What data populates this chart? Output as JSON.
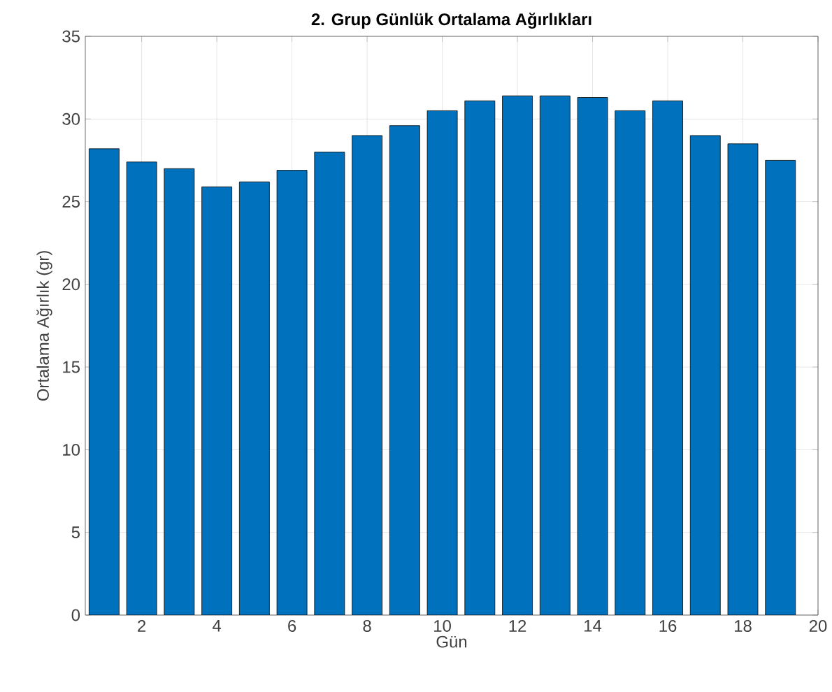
{
  "chart_data": {
    "type": "bar",
    "title": "2. Grup Günlük Ortalama Ağırlıkları",
    "xlabel": "Gün",
    "ylabel": "Ortalama Ağırlık (gr)",
    "x": [
      1,
      2,
      3,
      4,
      5,
      6,
      7,
      8,
      9,
      10,
      11,
      12,
      13,
      14,
      15,
      16,
      17,
      18,
      19
    ],
    "values": [
      28.2,
      27.4,
      27.0,
      25.9,
      26.2,
      26.9,
      28.0,
      29.0,
      29.6,
      30.5,
      31.1,
      31.4,
      31.4,
      31.3,
      30.5,
      31.1,
      29.0,
      28.5,
      27.5
    ],
    "color": "#0072bd",
    "xlim": [
      0.5,
      20
    ],
    "xticks": [
      2,
      4,
      6,
      8,
      10,
      12,
      14,
      16,
      18,
      20
    ],
    "ylim": [
      0,
      35
    ],
    "yticks": [
      0,
      5,
      10,
      15,
      20,
      25,
      30,
      35
    ],
    "grid": true
  }
}
